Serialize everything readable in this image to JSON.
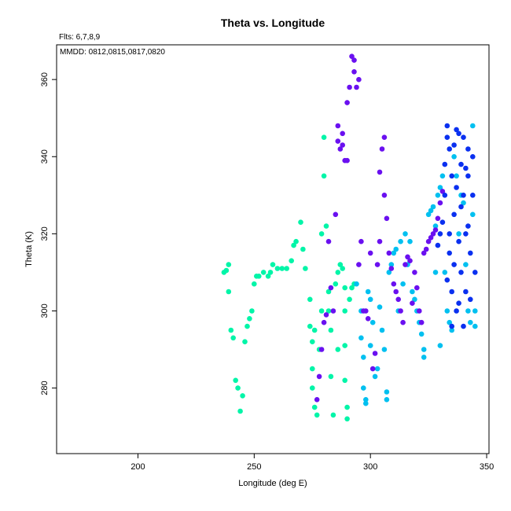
{
  "chart_data": {
    "type": "scatter",
    "title": "Theta vs. Longitude",
    "note_top": "Flts: 6,7,8,9",
    "note_inset": "MMDD: 0812,0815,0817,0820",
    "xlabel": "Longitude (deg E)",
    "ylabel": "Theta (K)",
    "xlim": [
      165,
      351
    ],
    "ylim": [
      263,
      369
    ],
    "xticks": [
      200,
      250,
      300,
      350
    ],
    "yticks": [
      280,
      300,
      320,
      340,
      360
    ],
    "grid": false,
    "series": [
      {
        "color": "#00f5a8",
        "points": [
          [
            237,
            310
          ],
          [
            238,
            310.5
          ],
          [
            239,
            312
          ],
          [
            239,
            305
          ],
          [
            240,
            295
          ],
          [
            241,
            293
          ],
          [
            242,
            282
          ],
          [
            243,
            280
          ],
          [
            244,
            274
          ],
          [
            245,
            278
          ],
          [
            246,
            292
          ],
          [
            247,
            296
          ],
          [
            248,
            298
          ],
          [
            249,
            300
          ],
          [
            250,
            307
          ],
          [
            251,
            309
          ],
          [
            252,
            309
          ],
          [
            254,
            310
          ],
          [
            256,
            309
          ],
          [
            257,
            310
          ],
          [
            258,
            312
          ],
          [
            260,
            311
          ],
          [
            262,
            311
          ],
          [
            264,
            311
          ],
          [
            266,
            313
          ],
          [
            267,
            317
          ],
          [
            268,
            318
          ],
          [
            270,
            323
          ],
          [
            271,
            316
          ],
          [
            272,
            311
          ],
          [
            274,
            303
          ],
          [
            274,
            296
          ],
          [
            275,
            292
          ],
          [
            275,
            285
          ],
          [
            275,
            280
          ],
          [
            276,
            295
          ],
          [
            276,
            275
          ],
          [
            277,
            273
          ],
          [
            278,
            290
          ],
          [
            279,
            300
          ],
          [
            279,
            320
          ],
          [
            280,
            345
          ],
          [
            280,
            335
          ],
          [
            281,
            322
          ],
          [
            282,
            305
          ],
          [
            282,
            300
          ],
          [
            283,
            295
          ],
          [
            283,
            283
          ],
          [
            284,
            273
          ],
          [
            285,
            307
          ],
          [
            286,
            310
          ],
          [
            286,
            290
          ],
          [
            287,
            312
          ],
          [
            288,
            311
          ],
          [
            289,
            306
          ],
          [
            289,
            300
          ],
          [
            289,
            291
          ],
          [
            289,
            282
          ],
          [
            290,
            275
          ],
          [
            290,
            272
          ],
          [
            291,
            303
          ],
          [
            292,
            306
          ],
          [
            293,
            307
          ]
        ]
      },
      {
        "color": "#00c0f0",
        "points": [
          [
            294,
            307
          ],
          [
            296,
            300
          ],
          [
            296,
            293
          ],
          [
            297,
            288
          ],
          [
            297,
            280
          ],
          [
            298,
            277
          ],
          [
            298,
            276
          ],
          [
            299,
            305
          ],
          [
            300,
            303
          ],
          [
            300,
            291
          ],
          [
            301,
            297
          ],
          [
            302,
            283
          ],
          [
            303,
            285
          ],
          [
            304,
            301
          ],
          [
            305,
            295
          ],
          [
            306,
            290
          ],
          [
            307,
            279
          ],
          [
            307,
            277
          ],
          [
            308,
            310
          ],
          [
            309,
            312
          ],
          [
            310,
            315
          ],
          [
            311,
            316
          ],
          [
            312,
            300
          ],
          [
            313,
            318
          ],
          [
            314,
            307
          ],
          [
            315,
            320
          ],
          [
            316,
            312
          ],
          [
            317,
            318
          ],
          [
            318,
            305
          ],
          [
            319,
            303
          ],
          [
            320,
            300
          ],
          [
            321,
            297
          ],
          [
            322,
            294
          ],
          [
            323,
            290
          ],
          [
            323,
            288
          ],
          [
            325,
            325
          ],
          [
            326,
            326
          ],
          [
            327,
            327
          ],
          [
            328,
            322
          ],
          [
            328,
            310
          ],
          [
            329,
            330
          ],
          [
            330,
            332
          ],
          [
            330,
            291
          ],
          [
            331,
            335
          ],
          [
            332,
            310
          ],
          [
            333,
            300
          ],
          [
            334,
            297
          ],
          [
            335,
            295
          ],
          [
            336,
            340
          ],
          [
            337,
            335
          ],
          [
            338,
            320
          ],
          [
            339,
            330
          ],
          [
            340,
            328
          ],
          [
            341,
            312
          ],
          [
            342,
            300
          ],
          [
            343,
            297
          ],
          [
            344,
            348
          ],
          [
            344,
            325
          ],
          [
            345,
            300
          ],
          [
            345,
            296
          ]
        ]
      },
      {
        "color": "#6a10f0",
        "points": [
          [
            277,
            277
          ],
          [
            278,
            283
          ],
          [
            279,
            290
          ],
          [
            280,
            297
          ],
          [
            281,
            299
          ],
          [
            282,
            318
          ],
          [
            283,
            306
          ],
          [
            284,
            300
          ],
          [
            285,
            325
          ],
          [
            286,
            348
          ],
          [
            286,
            344
          ],
          [
            287,
            342
          ],
          [
            288,
            346
          ],
          [
            288,
            343
          ],
          [
            289,
            339
          ],
          [
            290,
            339
          ],
          [
            290,
            354
          ],
          [
            291,
            358
          ],
          [
            292,
            366
          ],
          [
            293,
            365
          ],
          [
            293,
            362
          ],
          [
            294,
            358
          ],
          [
            295,
            360
          ],
          [
            295,
            312
          ],
          [
            296,
            318
          ],
          [
            297,
            300
          ],
          [
            298,
            300
          ],
          [
            299,
            298
          ],
          [
            300,
            315
          ],
          [
            301,
            285
          ],
          [
            302,
            289
          ],
          [
            303,
            312
          ],
          [
            304,
            318
          ],
          [
            304,
            336
          ],
          [
            305,
            342
          ],
          [
            306,
            345
          ],
          [
            306,
            330
          ],
          [
            307,
            324
          ],
          [
            308,
            315
          ],
          [
            309,
            311
          ],
          [
            310,
            307
          ],
          [
            311,
            305
          ],
          [
            312,
            303
          ],
          [
            313,
            300
          ],
          [
            314,
            297
          ],
          [
            315,
            312
          ],
          [
            316,
            314
          ],
          [
            317,
            313
          ],
          [
            318,
            302
          ],
          [
            319,
            310
          ],
          [
            320,
            306
          ],
          [
            321,
            300
          ],
          [
            322,
            297
          ],
          [
            323,
            315
          ],
          [
            324,
            316
          ],
          [
            325,
            318
          ],
          [
            326,
            319
          ],
          [
            327,
            320
          ],
          [
            328,
            321
          ],
          [
            329,
            324
          ],
          [
            330,
            328
          ],
          [
            331,
            331
          ]
        ]
      },
      {
        "color": "#0a30f0",
        "points": [
          [
            329,
            317
          ],
          [
            330,
            320
          ],
          [
            331,
            323
          ],
          [
            332,
            330
          ],
          [
            332,
            338
          ],
          [
            333,
            345
          ],
          [
            333,
            348
          ],
          [
            334,
            342
          ],
          [
            334,
            315
          ],
          [
            335,
            335
          ],
          [
            335,
            305
          ],
          [
            336,
            343
          ],
          [
            336,
            325
          ],
          [
            337,
            347
          ],
          [
            337,
            300
          ],
          [
            338,
            346
          ],
          [
            338,
            318
          ],
          [
            339,
            338
          ],
          [
            339,
            310
          ],
          [
            340,
            345
          ],
          [
            340,
            330
          ],
          [
            341,
            320
          ],
          [
            341,
            305
          ],
          [
            342,
            342
          ],
          [
            342,
            335
          ],
          [
            343,
            315
          ],
          [
            343,
            303
          ],
          [
            344,
            340
          ],
          [
            344,
            330
          ],
          [
            345,
            310
          ],
          [
            334,
            320
          ],
          [
            333,
            308
          ],
          [
            336,
            312
          ],
          [
            338,
            302
          ],
          [
            340,
            296
          ],
          [
            342,
            322
          ],
          [
            335,
            296
          ],
          [
            339,
            327
          ],
          [
            341,
            337
          ],
          [
            337,
            332
          ]
        ]
      }
    ]
  }
}
